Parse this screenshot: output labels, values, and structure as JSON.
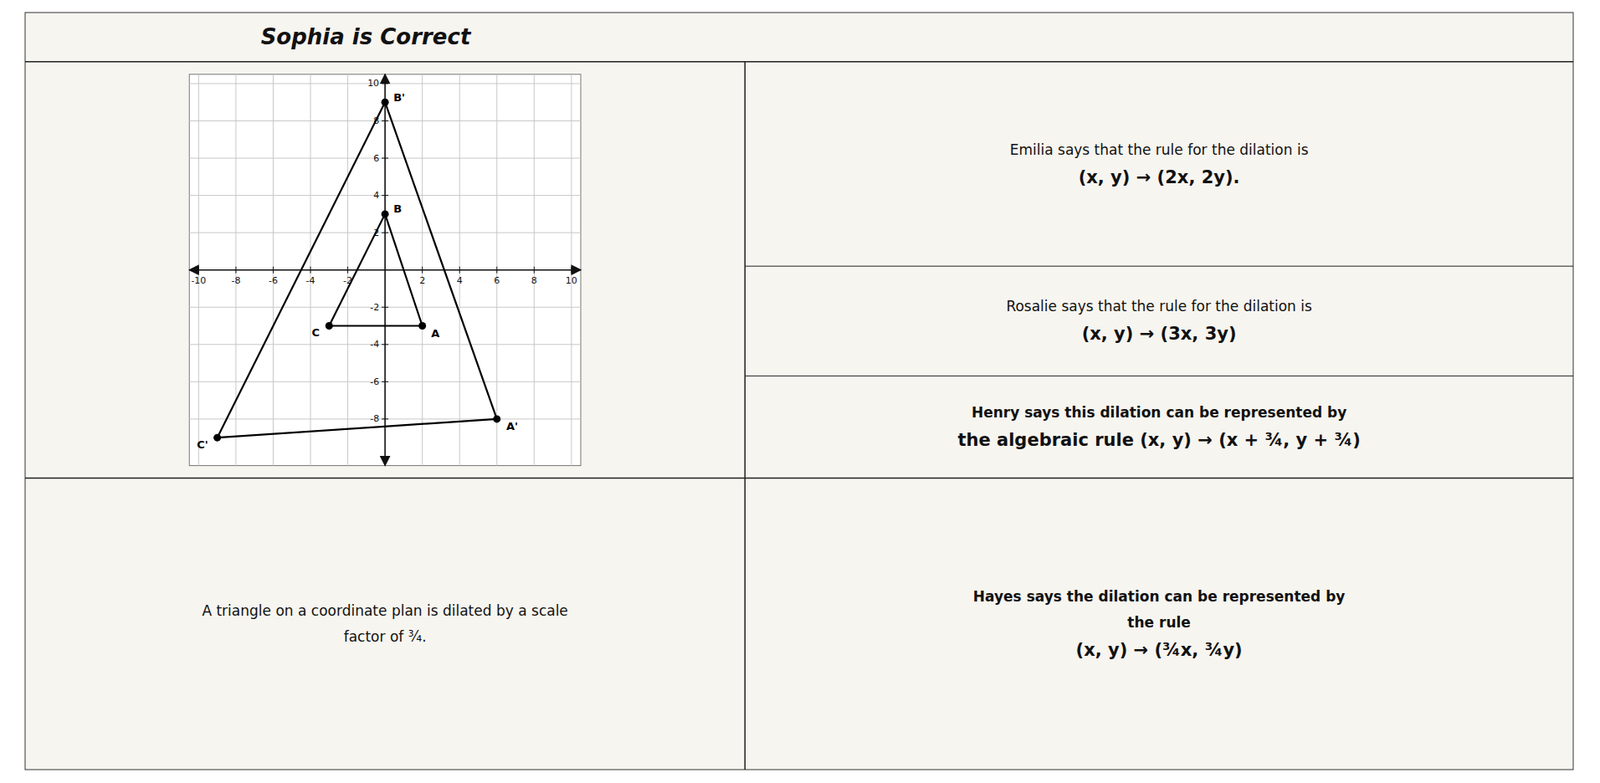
{
  "chart_data": {
    "type": "line",
    "title": "Sophia is Correct",
    "marker": "circle",
    "xlim": [
      -10.5,
      10.5
    ],
    "ylim": [
      -10.5,
      10.5
    ],
    "xticks": [
      -10,
      -8,
      -6,
      -4,
      -2,
      2,
      4,
      6,
      8,
      10
    ],
    "yticks": [
      -8,
      -6,
      -4,
      -2,
      2,
      4,
      6,
      8,
      10
    ],
    "grid": true,
    "series": [
      {
        "color": "#000000",
        "x": [
          0,
          6,
          -9
        ],
        "values": [
          9,
          -8,
          -9
        ],
        "point_labels": [
          "B'",
          "A'",
          "C'"
        ]
      },
      {
        "color": "#000000",
        "x": [
          0,
          2,
          -3
        ],
        "values": [
          3,
          -3,
          -3
        ],
        "point_labels": [
          "B",
          "A",
          "C"
        ]
      }
    ],
    "annotations": [
      [
        "A triangle on a coordinate plan is dilated by a scale",
        "factor of ¾."
      ],
      [
        "Emilia says that the rule for the dilation is",
        "(x, y) → (2x, 2y)."
      ],
      [
        "Rosalie says that the rule for the dilation is",
        "(x, y) → (3x, 3y)"
      ],
      [
        "Henry says this dilation can be represented by",
        "the algebraic rule (x, y) → (x + ¾, y + ¾)"
      ],
      [
        "Hayes says the dilation can be represented by",
        "the rule",
        "(x, y) → (¾x, ¾y)"
      ]
    ]
  }
}
